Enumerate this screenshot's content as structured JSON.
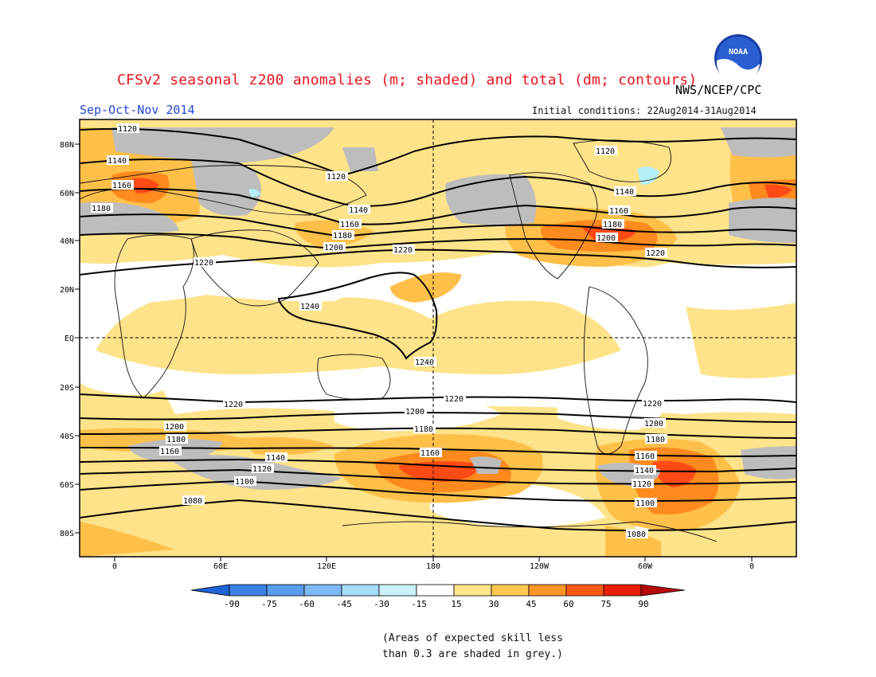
{
  "header": {
    "title": "CFSv2 seasonal z200 anomalies (m; shaded) and total (dm; contours)",
    "agency": "NWS/NCEP/CPC",
    "period": "Sep-Oct-Nov 2014",
    "initial_conditions": "Initial conditions: 22Aug2014-31Aug2014",
    "logo_text": "NOAA"
  },
  "map": {
    "lat_labels": [
      "80N",
      "60N",
      "40N",
      "20N",
      "EQ",
      "20S",
      "40S",
      "60S",
      "80S"
    ],
    "lon_labels": [
      "0",
      "60E",
      "120E",
      "180",
      "120W",
      "60W",
      "0"
    ],
    "contours": [
      {
        "value": "1080",
        "label": "1080"
      },
      {
        "value": "1100",
        "label": "1100"
      },
      {
        "value": "1120",
        "label": "1120"
      },
      {
        "value": "1140",
        "label": "1140"
      },
      {
        "value": "1160",
        "label": "1160"
      },
      {
        "value": "1180",
        "label": "1180"
      },
      {
        "value": "1200",
        "label": "1200"
      },
      {
        "value": "1220",
        "label": "1220"
      },
      {
        "value": "1240",
        "label": "1240"
      }
    ],
    "colors": {
      "grey_skill": "#bdbdbd",
      "light_orange": "#ffe38a",
      "orange": "#ffc04a",
      "dark_orange": "#ff8a1e",
      "red_orange": "#ff4a14",
      "light_blue": "#b4f0f5"
    }
  },
  "colorbar": {
    "ticks": [
      "-90",
      "-75",
      "-60",
      "-45",
      "-30",
      "-15",
      "15",
      "30",
      "45",
      "60",
      "75",
      "90"
    ],
    "colors": [
      "#1e64d6",
      "#3c82e6",
      "#5a9cf0",
      "#7db9f5",
      "#a5dcf8",
      "#c8f2f8",
      "#ffffff",
      "#ffe68c",
      "#ffc850",
      "#ff9628",
      "#ff5a14",
      "#e61e0a",
      "#b40a0a"
    ]
  },
  "footnote": {
    "line1": "(Areas of expected skill less",
    "line2": "than 0.3 are shaded in grey.)"
  }
}
